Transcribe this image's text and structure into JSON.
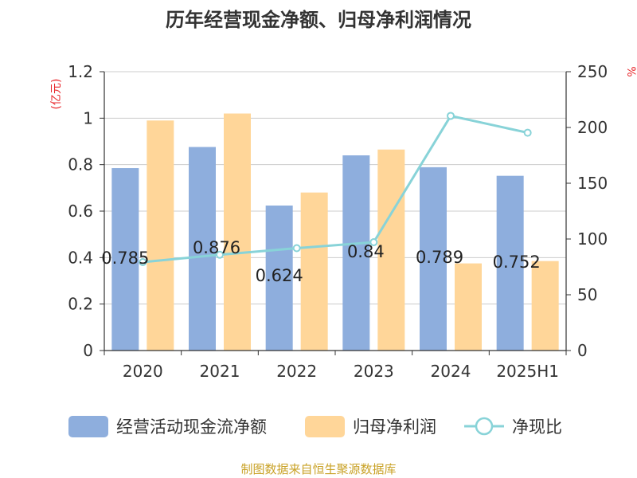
{
  "chart_data": {
    "type": "bar",
    "title": "历年经营现金净额、归母净利润情况",
    "categories": [
      "2020",
      "2021",
      "2022",
      "2023",
      "2024",
      "2025H1"
    ],
    "y_left": {
      "unit": "(亿元)",
      "range": [
        0,
        1.2
      ],
      "ticks": [
        "0",
        "0.2",
        "0.4",
        "0.6",
        "0.8",
        "1",
        "1.2"
      ]
    },
    "y_right": {
      "unit": "%",
      "range": [
        0,
        250
      ],
      "ticks": [
        "0",
        "50",
        "100",
        "150",
        "200",
        "250"
      ]
    },
    "grid": true,
    "legend_position": "bottom",
    "series": [
      {
        "name": "经营活动现金流净额",
        "type": "bar",
        "axis": "left",
        "color": "#8eaedd",
        "values": [
          0.785,
          0.876,
          0.624,
          0.84,
          0.789,
          0.752
        ],
        "labels": [
          "0.785",
          "0.876",
          "0.624",
          "0.84",
          "0.789",
          "0.752"
        ]
      },
      {
        "name": "归母净利润",
        "type": "bar",
        "axis": "left",
        "color": "#ffd699",
        "values": [
          0.99,
          1.02,
          0.68,
          0.865,
          0.375,
          0.385
        ]
      },
      {
        "name": "净现比",
        "type": "line",
        "axis": "right",
        "color": "#88d3d8",
        "values": [
          79.3,
          85.9,
          91.8,
          97.1,
          210.4,
          195.3
        ]
      }
    ]
  },
  "footer": {
    "source": "制图数据来自恒生聚源数据库"
  }
}
